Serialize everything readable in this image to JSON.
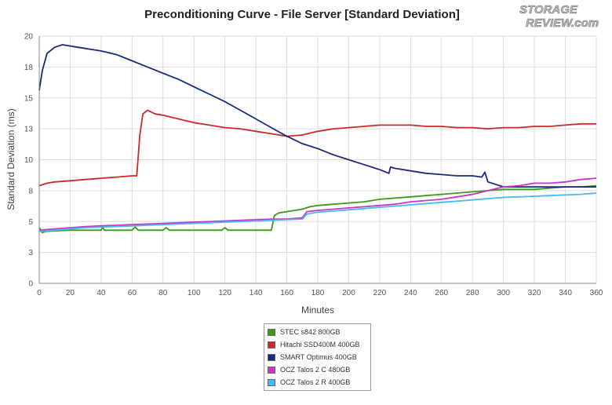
{
  "logo": {
    "line1": "STORAGE",
    "line2": "REVIEW.com"
  },
  "chart_data": {
    "type": "line",
    "title": "Preconditioning Curve - File Server [Standard Deviation]",
    "xlabel": "Minutes",
    "ylabel": "Standard Deviation (ms)",
    "xlim": [
      0,
      360
    ],
    "ylim": [
      0,
      20
    ],
    "xticks": [
      0,
      20,
      40,
      60,
      80,
      100,
      120,
      140,
      160,
      180,
      200,
      220,
      240,
      260,
      280,
      300,
      320,
      340,
      360
    ],
    "yticks": [
      0,
      3,
      5,
      8,
      10,
      13,
      15,
      18,
      20
    ],
    "ytick_values": [
      0,
      2.5,
      5,
      7.5,
      10,
      12.5,
      15,
      17.5,
      20
    ],
    "grid": true,
    "legend_position": "bottom-center",
    "series": [
      {
        "name": "STEC s842 800GB",
        "color": "#3a9a1a",
        "x": [
          0,
          2,
          4,
          10,
          20,
          30,
          40,
          41,
          42,
          50,
          60,
          62,
          64,
          70,
          80,
          82,
          84,
          90,
          100,
          110,
          118,
          120,
          122,
          130,
          140,
          150,
          152,
          155,
          160,
          165,
          170,
          175,
          180,
          190,
          200,
          210,
          220,
          230,
          240,
          250,
          260,
          270,
          280,
          290,
          300,
          310,
          320,
          330,
          340,
          350,
          360
        ],
        "y": [
          4.5,
          4.1,
          4.2,
          4.25,
          4.3,
          4.3,
          4.3,
          4.6,
          4.3,
          4.3,
          4.3,
          4.55,
          4.3,
          4.3,
          4.3,
          4.5,
          4.3,
          4.3,
          4.3,
          4.3,
          4.3,
          4.5,
          4.3,
          4.3,
          4.3,
          4.3,
          5.5,
          5.7,
          5.8,
          5.9,
          6.0,
          6.2,
          6.3,
          6.4,
          6.5,
          6.6,
          6.8,
          6.9,
          7.0,
          7.1,
          7.2,
          7.3,
          7.4,
          7.5,
          7.6,
          7.6,
          7.6,
          7.7,
          7.8,
          7.8,
          7.9
        ]
      },
      {
        "name": "Hitachi SSD400M 400GB",
        "color": "#cc2a2a",
        "x": [
          0,
          5,
          10,
          20,
          30,
          40,
          50,
          60,
          63,
          65,
          67,
          70,
          75,
          80,
          90,
          100,
          110,
          120,
          130,
          140,
          150,
          160,
          170,
          180,
          190,
          200,
          210,
          220,
          230,
          240,
          250,
          260,
          270,
          280,
          290,
          300,
          310,
          320,
          330,
          340,
          350,
          360
        ],
        "y": [
          7.9,
          8.1,
          8.2,
          8.3,
          8.4,
          8.5,
          8.6,
          8.7,
          8.7,
          12.0,
          13.7,
          14.0,
          13.7,
          13.6,
          13.3,
          13.0,
          12.8,
          12.6,
          12.5,
          12.3,
          12.1,
          11.9,
          12.0,
          12.3,
          12.5,
          12.6,
          12.7,
          12.8,
          12.8,
          12.8,
          12.7,
          12.7,
          12.6,
          12.6,
          12.5,
          12.6,
          12.6,
          12.7,
          12.7,
          12.8,
          12.9,
          12.9
        ]
      },
      {
        "name": "SMART Optimus 400GB",
        "color": "#1a2a7a",
        "x": [
          0,
          2,
          5,
          10,
          15,
          20,
          25,
          30,
          40,
          50,
          60,
          70,
          80,
          90,
          100,
          110,
          120,
          130,
          140,
          150,
          160,
          170,
          180,
          190,
          200,
          210,
          220,
          226,
          227,
          230,
          240,
          250,
          260,
          270,
          280,
          286,
          288,
          290,
          300,
          310,
          320,
          330,
          340,
          350,
          360
        ],
        "y": [
          15.6,
          17.2,
          18.6,
          19.1,
          19.3,
          19.2,
          19.1,
          19.0,
          18.8,
          18.5,
          18.0,
          17.5,
          17.0,
          16.5,
          15.9,
          15.3,
          14.7,
          14.0,
          13.3,
          12.6,
          11.9,
          11.3,
          10.9,
          10.4,
          10.0,
          9.6,
          9.2,
          8.9,
          9.4,
          9.3,
          9.1,
          8.9,
          8.8,
          8.7,
          8.7,
          8.6,
          9.0,
          8.2,
          7.8,
          7.8,
          7.8,
          7.8,
          7.8,
          7.8,
          7.8
        ]
      },
      {
        "name": "OCZ Talos 2 C 480GB",
        "color": "#cc33cc",
        "x": [
          0,
          10,
          20,
          30,
          40,
          50,
          60,
          70,
          80,
          90,
          100,
          110,
          120,
          130,
          140,
          150,
          160,
          170,
          173,
          180,
          190,
          200,
          210,
          220,
          230,
          240,
          250,
          260,
          270,
          280,
          290,
          300,
          310,
          320,
          330,
          340,
          350,
          360
        ],
        "y": [
          4.3,
          4.4,
          4.5,
          4.6,
          4.65,
          4.7,
          4.75,
          4.8,
          4.85,
          4.9,
          4.95,
          5.0,
          5.05,
          5.1,
          5.15,
          5.2,
          5.2,
          5.3,
          5.8,
          5.9,
          6.0,
          6.1,
          6.2,
          6.3,
          6.4,
          6.6,
          6.7,
          6.8,
          7.0,
          7.2,
          7.5,
          7.8,
          7.9,
          8.1,
          8.1,
          8.2,
          8.4,
          8.5
        ]
      },
      {
        "name": "OCZ Talos 2 R 400GB",
        "color": "#44bbee",
        "x": [
          0,
          10,
          20,
          30,
          40,
          50,
          60,
          70,
          80,
          90,
          100,
          110,
          120,
          130,
          140,
          150,
          160,
          170,
          173,
          180,
          190,
          200,
          210,
          220,
          230,
          240,
          250,
          260,
          270,
          280,
          290,
          300,
          310,
          320,
          330,
          340,
          350,
          360
        ],
        "y": [
          4.2,
          4.3,
          4.4,
          4.5,
          4.55,
          4.6,
          4.65,
          4.7,
          4.75,
          4.8,
          4.85,
          4.9,
          4.95,
          5.0,
          5.05,
          5.1,
          5.15,
          5.2,
          5.6,
          5.75,
          5.85,
          5.95,
          6.05,
          6.15,
          6.25,
          6.35,
          6.45,
          6.55,
          6.65,
          6.75,
          6.85,
          6.95,
          7.0,
          7.05,
          7.1,
          7.15,
          7.2,
          7.3
        ]
      }
    ]
  }
}
